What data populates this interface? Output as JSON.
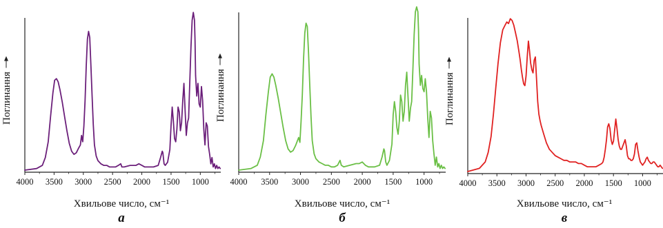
{
  "chart_data": [
    {
      "type": "line",
      "panel_letter": "а",
      "xlabel": "Хвильове число, см⁻¹",
      "ylabel": "Поглинання",
      "xlim": [
        4000,
        650
      ],
      "x_reversed": true,
      "x_ticks": [
        4000,
        3500,
        3000,
        2500,
        2000,
        1500,
        1000
      ],
      "ylim": [
        0,
        1
      ],
      "grid": false,
      "legend": "none",
      "color": "#6b1f7a",
      "series": [
        {
          "x": [
            4000,
            3800,
            3700,
            3650,
            3600,
            3560,
            3520,
            3490,
            3460,
            3430,
            3400,
            3360,
            3320,
            3280,
            3240,
            3200,
            3160,
            3120,
            3080,
            3050,
            3030,
            3010,
            2990,
            2970,
            2950,
            2930,
            2910,
            2890,
            2870,
            2850,
            2830,
            2810,
            2780,
            2750,
            2700,
            2650,
            2600,
            2550,
            2500,
            2450,
            2400,
            2360,
            2340,
            2300,
            2200,
            2100,
            2050,
            2000,
            1950,
            1900,
            1800,
            1720,
            1680,
            1650,
            1640,
            1620,
            1600,
            1560,
            1520,
            1500,
            1480,
            1460,
            1440,
            1420,
            1400,
            1380,
            1360,
            1340,
            1320,
            1300,
            1280,
            1260,
            1240,
            1220,
            1200,
            1180,
            1160,
            1140,
            1120,
            1100,
            1090,
            1080,
            1060,
            1040,
            1020,
            1000,
            980,
            960,
            940,
            920,
            900,
            880,
            860,
            840,
            820,
            800,
            780,
            760,
            740,
            720,
            700,
            680,
            660
          ],
          "y": [
            0.0,
            0.01,
            0.03,
            0.08,
            0.18,
            0.34,
            0.49,
            0.57,
            0.58,
            0.56,
            0.51,
            0.43,
            0.34,
            0.25,
            0.17,
            0.12,
            0.1,
            0.11,
            0.14,
            0.16,
            0.22,
            0.18,
            0.28,
            0.44,
            0.66,
            0.83,
            0.88,
            0.84,
            0.66,
            0.47,
            0.29,
            0.16,
            0.09,
            0.06,
            0.04,
            0.03,
            0.03,
            0.02,
            0.02,
            0.02,
            0.03,
            0.04,
            0.02,
            0.02,
            0.03,
            0.03,
            0.04,
            0.03,
            0.02,
            0.02,
            0.02,
            0.03,
            0.08,
            0.12,
            0.11,
            0.04,
            0.03,
            0.05,
            0.13,
            0.28,
            0.4,
            0.31,
            0.2,
            0.18,
            0.26,
            0.4,
            0.37,
            0.25,
            0.3,
            0.44,
            0.55,
            0.38,
            0.22,
            0.3,
            0.33,
            0.56,
            0.78,
            0.95,
            1.0,
            0.95,
            0.82,
            0.6,
            0.47,
            0.55,
            0.42,
            0.4,
            0.53,
            0.44,
            0.26,
            0.16,
            0.3,
            0.28,
            0.15,
            0.1,
            0.04,
            0.08,
            0.02,
            0.04,
            0.01,
            0.03,
            0.01,
            0.02,
            0.01
          ]
        }
      ]
    },
    {
      "type": "line",
      "panel_letter": "б",
      "xlabel": "Хвильове число, см⁻¹",
      "ylabel": "Поглинання",
      "xlim": [
        4000,
        650
      ],
      "x_reversed": true,
      "x_ticks": [
        4000,
        3500,
        3000,
        2500,
        2000,
        1500,
        1000
      ],
      "ylim": [
        0,
        1
      ],
      "grid": false,
      "legend": "none",
      "color": "#6abf45",
      "series": [
        {
          "x": [
            4000,
            3800,
            3700,
            3650,
            3600,
            3560,
            3520,
            3490,
            3460,
            3430,
            3400,
            3360,
            3320,
            3280,
            3240,
            3200,
            3160,
            3120,
            3080,
            3050,
            3030,
            3010,
            2990,
            2970,
            2950,
            2930,
            2910,
            2890,
            2870,
            2850,
            2830,
            2810,
            2780,
            2750,
            2700,
            2650,
            2600,
            2550,
            2500,
            2450,
            2400,
            2360,
            2340,
            2300,
            2200,
            2100,
            2050,
            2000,
            1950,
            1900,
            1800,
            1720,
            1680,
            1650,
            1640,
            1620,
            1600,
            1560,
            1520,
            1500,
            1480,
            1460,
            1440,
            1420,
            1400,
            1380,
            1360,
            1340,
            1320,
            1300,
            1280,
            1260,
            1240,
            1220,
            1200,
            1180,
            1160,
            1140,
            1120,
            1100,
            1090,
            1080,
            1060,
            1040,
            1020,
            1000,
            980,
            960,
            940,
            920,
            900,
            880,
            860,
            840,
            820,
            800,
            780,
            760,
            740,
            720,
            700,
            680,
            660
          ],
          "y": [
            0.0,
            0.01,
            0.03,
            0.08,
            0.18,
            0.34,
            0.48,
            0.57,
            0.59,
            0.57,
            0.52,
            0.44,
            0.35,
            0.26,
            0.18,
            0.13,
            0.11,
            0.12,
            0.15,
            0.18,
            0.2,
            0.17,
            0.3,
            0.46,
            0.68,
            0.84,
            0.9,
            0.88,
            0.72,
            0.52,
            0.33,
            0.18,
            0.1,
            0.07,
            0.05,
            0.04,
            0.03,
            0.03,
            0.02,
            0.02,
            0.03,
            0.06,
            0.03,
            0.02,
            0.03,
            0.04,
            0.04,
            0.05,
            0.03,
            0.02,
            0.02,
            0.03,
            0.08,
            0.13,
            0.12,
            0.05,
            0.03,
            0.06,
            0.16,
            0.34,
            0.42,
            0.36,
            0.26,
            0.22,
            0.3,
            0.46,
            0.42,
            0.3,
            0.36,
            0.52,
            0.6,
            0.45,
            0.3,
            0.38,
            0.42,
            0.62,
            0.83,
            0.97,
            1.0,
            0.97,
            0.86,
            0.65,
            0.52,
            0.58,
            0.5,
            0.48,
            0.56,
            0.48,
            0.32,
            0.2,
            0.36,
            0.32,
            0.18,
            0.1,
            0.03,
            0.08,
            0.02,
            0.04,
            0.01,
            0.03,
            0.01,
            0.02,
            0.01
          ]
        }
      ]
    },
    {
      "type": "line",
      "panel_letter": "в",
      "xlabel": "Хвильове число, см⁻¹",
      "ylabel": "Поглинання",
      "xlim": [
        4000,
        650
      ],
      "x_reversed": true,
      "x_ticks": [
        4000,
        3500,
        3000,
        2500,
        2000,
        1500,
        1000
      ],
      "ylim": [
        0,
        1
      ],
      "grid": false,
      "legend": "none",
      "color": "#e02020",
      "series": [
        {
          "x": [
            4000,
            3800,
            3700,
            3650,
            3600,
            3560,
            3520,
            3480,
            3440,
            3400,
            3360,
            3330,
            3300,
            3270,
            3240,
            3210,
            3180,
            3150,
            3120,
            3100,
            3080,
            3060,
            3040,
            3020,
            3000,
            2980,
            2960,
            2940,
            2920,
            2900,
            2880,
            2860,
            2840,
            2820,
            2800,
            2780,
            2760,
            2740,
            2700,
            2650,
            2600,
            2550,
            2500,
            2450,
            2400,
            2350,
            2300,
            2250,
            2200,
            2150,
            2100,
            2050,
            2000,
            1950,
            1900,
            1850,
            1800,
            1750,
            1700,
            1680,
            1660,
            1640,
            1620,
            1600,
            1580,
            1560,
            1540,
            1520,
            1500,
            1480,
            1460,
            1440,
            1420,
            1400,
            1380,
            1360,
            1340,
            1320,
            1300,
            1280,
            1260,
            1240,
            1220,
            1200,
            1180,
            1160,
            1140,
            1120,
            1100,
            1080,
            1060,
            1040,
            1020,
            1000,
            980,
            960,
            940,
            920,
            900,
            880,
            860,
            840,
            820,
            800,
            780,
            760,
            740,
            720,
            700,
            680,
            660
          ],
          "y": [
            0.0,
            0.02,
            0.06,
            0.12,
            0.22,
            0.36,
            0.52,
            0.68,
            0.81,
            0.89,
            0.92,
            0.94,
            0.93,
            0.96,
            0.95,
            0.92,
            0.87,
            0.82,
            0.75,
            0.7,
            0.64,
            0.59,
            0.55,
            0.54,
            0.6,
            0.72,
            0.82,
            0.76,
            0.68,
            0.64,
            0.62,
            0.7,
            0.72,
            0.58,
            0.44,
            0.36,
            0.32,
            0.29,
            0.24,
            0.18,
            0.14,
            0.12,
            0.1,
            0.09,
            0.08,
            0.07,
            0.07,
            0.06,
            0.06,
            0.06,
            0.05,
            0.05,
            0.04,
            0.03,
            0.03,
            0.03,
            0.03,
            0.04,
            0.05,
            0.06,
            0.09,
            0.14,
            0.2,
            0.28,
            0.3,
            0.27,
            0.2,
            0.17,
            0.19,
            0.26,
            0.33,
            0.27,
            0.2,
            0.16,
            0.14,
            0.14,
            0.16,
            0.18,
            0.2,
            0.16,
            0.1,
            0.08,
            0.08,
            0.07,
            0.07,
            0.08,
            0.11,
            0.17,
            0.18,
            0.13,
            0.09,
            0.06,
            0.05,
            0.04,
            0.05,
            0.06,
            0.08,
            0.09,
            0.07,
            0.06,
            0.05,
            0.05,
            0.06,
            0.06,
            0.05,
            0.04,
            0.03,
            0.03,
            0.04,
            0.03,
            0.02
          ]
        }
      ]
    }
  ]
}
